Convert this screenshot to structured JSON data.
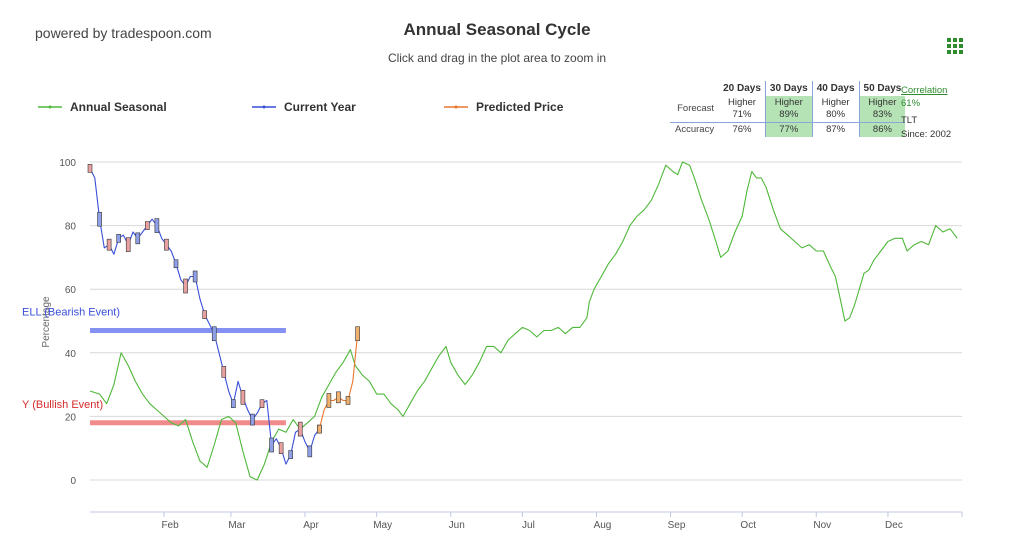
{
  "header": {
    "powered_by": "powered by tradespoon.com",
    "title": "Annual Seasonal Cycle",
    "subtitle": "Click and drag in the plot area to zoom in"
  },
  "legend": [
    {
      "name": "Annual Seasonal",
      "color": "#4fb83a"
    },
    {
      "name": "Current Year",
      "color": "#3a4fd8"
    },
    {
      "name": "Predicted Price",
      "color": "#e8762d"
    }
  ],
  "stats": {
    "columns": [
      "20 Days",
      "30 Days",
      "40 Days",
      "50 Days"
    ],
    "forecast_label": "Forecast",
    "accuracy_label": "Accuracy",
    "forecast": [
      {
        "direction": "Higher",
        "pct": "71%",
        "highlight": false
      },
      {
        "direction": "Higher",
        "pct": "89%",
        "highlight": true
      },
      {
        "direction": "Higher",
        "pct": "80%",
        "highlight": false
      },
      {
        "direction": "Higher",
        "pct": "83%",
        "highlight": true
      }
    ],
    "accuracy": [
      {
        "pct": "76%",
        "highlight": false
      },
      {
        "pct": "77%",
        "highlight": true
      },
      {
        "pct": "87%",
        "highlight": false
      },
      {
        "pct": "86%",
        "highlight": true
      }
    ],
    "correlation_label": "Correlation",
    "correlation_value": "61%",
    "ticker": "TLT",
    "since": "Since: 2002"
  },
  "chart_data": {
    "type": "line",
    "ylabel": "Percentage",
    "ylim": [
      -10,
      100
    ],
    "yticks": [
      0,
      20,
      40,
      60,
      80,
      100
    ],
    "x_range": [
      0,
      365
    ],
    "months": [
      {
        "label": "Feb",
        "day": 31
      },
      {
        "label": "Mar",
        "day": 59
      },
      {
        "label": "Apr",
        "day": 90
      },
      {
        "label": "May",
        "day": 120
      },
      {
        "label": "Jun",
        "day": 151
      },
      {
        "label": "Jul",
        "day": 181
      },
      {
        "label": "Aug",
        "day": 212
      },
      {
        "label": "Sep",
        "day": 243
      },
      {
        "label": "Oct",
        "day": 273
      },
      {
        "label": "Nov",
        "day": 304
      },
      {
        "label": "Dec",
        "day": 334
      }
    ],
    "grid": true,
    "levels": [
      {
        "label": "ELL (Bearish Event)",
        "value": 47,
        "x_end": 82,
        "color": "#6e7ef0",
        "text_color": "#3a4fd8"
      },
      {
        "label": "Y (Bullish Event)",
        "value": 18,
        "x_end": 82,
        "color": "#ee7777",
        "text_color": "#d42a2a"
      }
    ],
    "series": [
      {
        "name": "Annual Seasonal",
        "color": "#4fb83a",
        "points": [
          [
            0,
            28
          ],
          [
            4,
            27
          ],
          [
            7,
            24
          ],
          [
            10,
            30
          ],
          [
            13,
            40
          ],
          [
            16,
            36
          ],
          [
            19,
            31
          ],
          [
            22,
            27
          ],
          [
            25,
            24
          ],
          [
            28,
            22
          ],
          [
            31,
            20
          ],
          [
            34,
            18
          ],
          [
            37,
            17
          ],
          [
            40,
            19
          ],
          [
            43,
            12
          ],
          [
            46,
            6
          ],
          [
            49,
            4
          ],
          [
            52,
            11
          ],
          [
            55,
            19
          ],
          [
            58,
            20
          ],
          [
            61,
            18
          ],
          [
            64,
            9
          ],
          [
            67,
            1
          ],
          [
            70,
            0
          ],
          [
            73,
            5
          ],
          [
            76,
            12
          ],
          [
            79,
            16
          ],
          [
            82,
            15
          ],
          [
            85,
            19
          ],
          [
            88,
            16
          ],
          [
            91,
            18
          ],
          [
            94,
            20
          ],
          [
            97,
            26
          ],
          [
            100,
            30
          ],
          [
            103,
            34
          ],
          [
            106,
            37
          ],
          [
            109,
            41
          ],
          [
            111,
            36
          ],
          [
            114,
            33
          ],
          [
            117,
            31
          ],
          [
            120,
            27
          ],
          [
            123,
            27
          ],
          [
            126,
            24
          ],
          [
            129,
            22
          ],
          [
            131,
            20
          ],
          [
            134,
            24
          ],
          [
            137,
            28
          ],
          [
            140,
            31
          ],
          [
            143,
            35
          ],
          [
            146,
            39
          ],
          [
            149,
            42
          ],
          [
            151,
            37
          ],
          [
            154,
            33
          ],
          [
            157,
            30
          ],
          [
            160,
            33
          ],
          [
            163,
            37
          ],
          [
            166,
            42
          ],
          [
            169,
            42
          ],
          [
            172,
            40
          ],
          [
            175,
            44
          ],
          [
            178,
            46
          ],
          [
            181,
            48
          ],
          [
            184,
            47
          ],
          [
            187,
            45
          ],
          [
            190,
            47
          ],
          [
            193,
            47
          ],
          [
            196,
            48
          ],
          [
            199,
            46
          ],
          [
            202,
            48
          ],
          [
            205,
            48
          ],
          [
            208,
            51
          ],
          [
            209,
            56
          ],
          [
            211,
            60
          ],
          [
            214,
            64
          ],
          [
            217,
            68
          ],
          [
            220,
            71
          ],
          [
            223,
            75
          ],
          [
            226,
            80
          ],
          [
            229,
            83
          ],
          [
            232,
            85
          ],
          [
            235,
            88
          ],
          [
            238,
            93
          ],
          [
            241,
            99
          ],
          [
            244,
            97
          ],
          [
            246,
            96
          ],
          [
            248,
            100
          ],
          [
            251,
            99
          ],
          [
            253,
            95
          ],
          [
            256,
            88
          ],
          [
            259,
            82
          ],
          [
            262,
            75
          ],
          [
            264,
            70
          ],
          [
            267,
            72
          ],
          [
            270,
            78
          ],
          [
            273,
            83
          ],
          [
            275,
            91
          ],
          [
            277,
            97
          ],
          [
            279,
            95
          ],
          [
            281,
            95
          ],
          [
            283,
            92
          ],
          [
            286,
            85
          ],
          [
            289,
            79
          ],
          [
            292,
            77
          ],
          [
            295,
            75
          ],
          [
            298,
            73
          ],
          [
            301,
            74
          ],
          [
            304,
            72
          ],
          [
            307,
            72
          ],
          [
            310,
            67
          ],
          [
            312,
            64
          ],
          [
            314,
            57
          ],
          [
            316,
            50
          ],
          [
            318,
            51
          ],
          [
            320,
            55
          ],
          [
            322,
            60
          ],
          [
            324,
            65
          ],
          [
            326,
            66
          ],
          [
            328,
            69
          ],
          [
            331,
            72
          ],
          [
            334,
            75
          ],
          [
            337,
            76
          ],
          [
            340,
            76
          ],
          [
            342,
            72
          ],
          [
            345,
            74
          ],
          [
            348,
            75
          ],
          [
            351,
            74
          ],
          [
            354,
            80
          ],
          [
            357,
            78
          ],
          [
            360,
            79
          ],
          [
            363,
            76
          ]
        ]
      },
      {
        "name": "Current Year",
        "color": "#3a4fd8",
        "points": [
          [
            0,
            98
          ],
          [
            2,
            95
          ],
          [
            4,
            82
          ],
          [
            6,
            73
          ],
          [
            8,
            74
          ],
          [
            10,
            71
          ],
          [
            12,
            76
          ],
          [
            14,
            77
          ],
          [
            16,
            74
          ],
          [
            18,
            78
          ],
          [
            20,
            76
          ],
          [
            22,
            78
          ],
          [
            24,
            80
          ],
          [
            26,
            82
          ],
          [
            28,
            80
          ],
          [
            30,
            76
          ],
          [
            32,
            74
          ],
          [
            34,
            72
          ],
          [
            36,
            68
          ],
          [
            38,
            63
          ],
          [
            40,
            61
          ],
          [
            42,
            64
          ],
          [
            44,
            64
          ],
          [
            46,
            57
          ],
          [
            48,
            52
          ],
          [
            50,
            49
          ],
          [
            52,
            46
          ],
          [
            54,
            40
          ],
          [
            56,
            34
          ],
          [
            58,
            28
          ],
          [
            60,
            24
          ],
          [
            62,
            31
          ],
          [
            64,
            26
          ],
          [
            66,
            22
          ],
          [
            68,
            19
          ],
          [
            70,
            21
          ],
          [
            72,
            24
          ],
          [
            74,
            25
          ],
          [
            76,
            11
          ],
          [
            78,
            13
          ],
          [
            80,
            10
          ],
          [
            82,
            5
          ],
          [
            84,
            8
          ],
          [
            86,
            15
          ],
          [
            88,
            16
          ],
          [
            90,
            12
          ],
          [
            92,
            9
          ],
          [
            94,
            14
          ],
          [
            96,
            16
          ]
        ]
      },
      {
        "name": "Predicted Price",
        "color": "#e8762d",
        "points": [
          [
            96,
            16
          ],
          [
            98,
            22
          ],
          [
            100,
            25
          ],
          [
            102,
            25
          ],
          [
            104,
            26
          ],
          [
            106,
            25
          ],
          [
            108,
            25
          ],
          [
            110,
            31
          ],
          [
            112,
            46
          ]
        ]
      }
    ]
  }
}
